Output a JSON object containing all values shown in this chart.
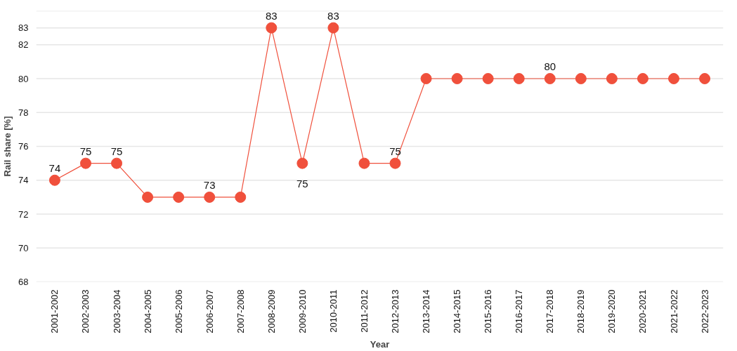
{
  "chart_data": {
    "type": "line",
    "xlabel": "Year",
    "ylabel": "Rail share [%]",
    "categories": [
      "2001-2002",
      "2002-2003",
      "2003-2004",
      "2004-2005",
      "2005-2006",
      "2006-2007",
      "2007-2008",
      "2008-2009",
      "2009-2010",
      "2010-2011",
      "2011-2012",
      "2012-2013",
      "2013-2014",
      "2014-2015",
      "2015-2016",
      "2016-2017",
      "2017-2018",
      "2018-2019",
      "2019-2020",
      "2020-2021",
      "2021-2022",
      "2022-2023"
    ],
    "series": [
      {
        "color": "#f0503c",
        "values": [
          74,
          75,
          75,
          73,
          73,
          73,
          73,
          83,
          75,
          83,
          75,
          75,
          80,
          80,
          80,
          80,
          80,
          80,
          80,
          80,
          80,
          80
        ],
        "value_labels": [
          "74",
          "75",
          "75",
          null,
          null,
          "73",
          null,
          "83",
          "75",
          "83",
          null,
          "75",
          null,
          null,
          null,
          null,
          "80",
          null,
          null,
          null,
          null,
          null
        ]
      }
    ],
    "ylim": [
      68,
      84
    ],
    "yticks": [
      68,
      70,
      72,
      74,
      76,
      78,
      80,
      82,
      83,
      {
        "value": 84,
        "label": null
      }
    ],
    "grid": "y",
    "marker": "circle",
    "line_style": "solid"
  }
}
